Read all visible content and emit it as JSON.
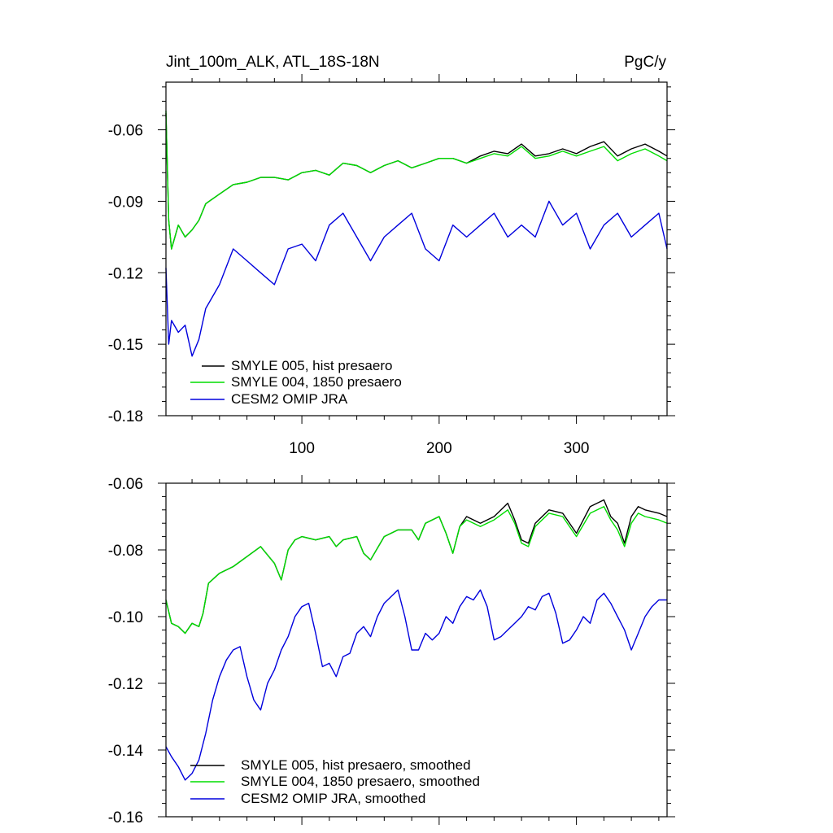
{
  "chart_data": [
    {
      "type": "line",
      "title": "Jint_100m_ALK, ATL_18S-18N",
      "units": "PgC/y",
      "xlabel": "",
      "ylabel": "",
      "xlim": [
        1,
        366
      ],
      "ylim": [
        -0.18,
        -0.04
      ],
      "x_ticks": [
        100,
        200,
        300
      ],
      "x_tick_labels": [
        "100",
        "200",
        "300"
      ],
      "y_ticks": [
        -0.18,
        -0.15,
        -0.12,
        -0.09,
        -0.06
      ],
      "y_tick_labels": [
        "-0.18",
        "-0.15",
        "-0.12",
        "-0.09",
        "-0.06"
      ],
      "grid": false,
      "legend": "bottom-left",
      "series": [
        {
          "name": "SMYLE 005, hist presaero",
          "color": "#000000",
          "x": [
            1,
            3,
            5,
            10,
            15,
            20,
            25,
            30,
            40,
            50,
            60,
            70,
            80,
            90,
            100,
            110,
            120,
            130,
            140,
            150,
            160,
            170,
            180,
            190,
            200,
            210,
            220,
            230,
            240,
            250,
            260,
            270,
            280,
            290,
            300,
            310,
            320,
            330,
            340,
            350,
            360,
            366
          ],
          "y": [
            -0.053,
            -0.098,
            -0.11,
            -0.1,
            -0.105,
            -0.102,
            -0.098,
            -0.091,
            -0.087,
            -0.083,
            -0.082,
            -0.08,
            -0.08,
            -0.081,
            -0.078,
            -0.077,
            -0.079,
            -0.074,
            -0.075,
            -0.078,
            -0.075,
            -0.073,
            -0.076,
            -0.074,
            -0.072,
            -0.072,
            -0.074,
            -0.071,
            -0.069,
            -0.07,
            -0.066,
            -0.071,
            -0.07,
            -0.068,
            -0.07,
            -0.067,
            -0.065,
            -0.071,
            -0.068,
            -0.066,
            -0.069,
            -0.071
          ]
        },
        {
          "name": "SMYLE 004, 1850 presaero",
          "color": "#00dd00",
          "x": [
            1,
            3,
            5,
            10,
            15,
            20,
            25,
            30,
            40,
            50,
            60,
            70,
            80,
            90,
            100,
            110,
            120,
            130,
            140,
            150,
            160,
            170,
            180,
            190,
            200,
            210,
            220,
            230,
            240,
            250,
            260,
            270,
            280,
            290,
            300,
            310,
            320,
            330,
            340,
            350,
            360,
            366
          ],
          "y": [
            -0.052,
            -0.098,
            -0.11,
            -0.1,
            -0.105,
            -0.102,
            -0.098,
            -0.091,
            -0.087,
            -0.083,
            -0.082,
            -0.08,
            -0.08,
            -0.081,
            -0.078,
            -0.077,
            -0.079,
            -0.074,
            -0.075,
            -0.078,
            -0.075,
            -0.073,
            -0.076,
            -0.074,
            -0.072,
            -0.072,
            -0.074,
            -0.072,
            -0.07,
            -0.071,
            -0.067,
            -0.072,
            -0.071,
            -0.069,
            -0.071,
            -0.069,
            -0.067,
            -0.073,
            -0.07,
            -0.068,
            -0.071,
            -0.073
          ]
        },
        {
          "name": "CESM2 OMIP JRA",
          "color": "#0000dd",
          "x": [
            1,
            3,
            5,
            10,
            15,
            20,
            25,
            30,
            40,
            50,
            60,
            70,
            80,
            90,
            100,
            110,
            120,
            130,
            140,
            150,
            160,
            170,
            180,
            190,
            200,
            210,
            220,
            230,
            240,
            250,
            260,
            270,
            280,
            290,
            300,
            310,
            320,
            330,
            340,
            350,
            360,
            366
          ],
          "y": [
            -0.118,
            -0.15,
            -0.14,
            -0.145,
            -0.142,
            -0.155,
            -0.148,
            -0.135,
            -0.125,
            -0.11,
            -0.115,
            -0.12,
            -0.125,
            -0.11,
            -0.108,
            -0.115,
            -0.1,
            -0.095,
            -0.105,
            -0.115,
            -0.105,
            -0.1,
            -0.095,
            -0.11,
            -0.115,
            -0.1,
            -0.105,
            -0.1,
            -0.095,
            -0.105,
            -0.1,
            -0.105,
            -0.09,
            -0.1,
            -0.095,
            -0.11,
            -0.1,
            -0.095,
            -0.105,
            -0.1,
            -0.095,
            -0.11
          ]
        }
      ]
    },
    {
      "type": "line",
      "title": "",
      "xlabel": "",
      "ylabel": "",
      "xlim": [
        1,
        366
      ],
      "ylim": [
        -0.16,
        -0.06
      ],
      "x_ticks": [
        100,
        200,
        300
      ],
      "y_ticks": [
        -0.16,
        -0.14,
        -0.12,
        -0.1,
        -0.08,
        -0.06
      ],
      "y_tick_labels": [
        "-0.16",
        "-0.14",
        "-0.12",
        "-0.10",
        "-0.08",
        "-0.06"
      ],
      "grid": false,
      "legend": "bottom-left",
      "series": [
        {
          "name": "SMYLE 005, hist presaero, smoothed",
          "color": "#000000",
          "x": [
            1,
            5,
            10,
            15,
            20,
            25,
            28,
            32,
            40,
            50,
            60,
            70,
            80,
            85,
            90,
            95,
            100,
            110,
            120,
            125,
            130,
            140,
            145,
            150,
            160,
            170,
            180,
            185,
            190,
            200,
            205,
            210,
            215,
            220,
            230,
            240,
            250,
            255,
            260,
            265,
            270,
            280,
            290,
            300,
            310,
            320,
            325,
            330,
            335,
            340,
            345,
            350,
            360,
            366
          ],
          "y": [
            -0.095,
            -0.102,
            -0.103,
            -0.105,
            -0.102,
            -0.103,
            -0.099,
            -0.09,
            -0.087,
            -0.085,
            -0.082,
            -0.079,
            -0.084,
            -0.089,
            -0.08,
            -0.077,
            -0.076,
            -0.077,
            -0.076,
            -0.079,
            -0.077,
            -0.076,
            -0.081,
            -0.083,
            -0.076,
            -0.074,
            -0.074,
            -0.077,
            -0.072,
            -0.07,
            -0.075,
            -0.081,
            -0.073,
            -0.07,
            -0.072,
            -0.07,
            -0.066,
            -0.071,
            -0.077,
            -0.078,
            -0.072,
            -0.068,
            -0.069,
            -0.075,
            -0.067,
            -0.065,
            -0.07,
            -0.072,
            -0.078,
            -0.07,
            -0.067,
            -0.068,
            -0.069,
            -0.07
          ]
        },
        {
          "name": "SMYLE 004, 1850 presaero, smoothed",
          "color": "#00dd00",
          "x": [
            1,
            5,
            10,
            15,
            20,
            25,
            28,
            32,
            40,
            50,
            60,
            70,
            80,
            85,
            90,
            95,
            100,
            110,
            120,
            125,
            130,
            140,
            145,
            150,
            160,
            170,
            180,
            185,
            190,
            200,
            205,
            210,
            215,
            220,
            230,
            240,
            250,
            255,
            260,
            265,
            270,
            280,
            290,
            300,
            310,
            320,
            325,
            330,
            335,
            340,
            345,
            350,
            360,
            366
          ],
          "y": [
            -0.095,
            -0.102,
            -0.103,
            -0.105,
            -0.102,
            -0.103,
            -0.099,
            -0.09,
            -0.087,
            -0.085,
            -0.082,
            -0.079,
            -0.084,
            -0.089,
            -0.08,
            -0.077,
            -0.076,
            -0.077,
            -0.076,
            -0.079,
            -0.077,
            -0.076,
            -0.081,
            -0.083,
            -0.076,
            -0.074,
            -0.074,
            -0.077,
            -0.072,
            -0.07,
            -0.075,
            -0.081,
            -0.073,
            -0.071,
            -0.073,
            -0.071,
            -0.068,
            -0.072,
            -0.078,
            -0.079,
            -0.073,
            -0.069,
            -0.07,
            -0.076,
            -0.069,
            -0.067,
            -0.071,
            -0.074,
            -0.079,
            -0.072,
            -0.069,
            -0.07,
            -0.071,
            -0.072
          ]
        },
        {
          "name": "CESM2 OMIP JRA, smoothed",
          "color": "#0000dd",
          "x": [
            1,
            5,
            10,
            15,
            20,
            25,
            30,
            35,
            40,
            45,
            50,
            55,
            60,
            65,
            70,
            75,
            80,
            85,
            90,
            95,
            100,
            105,
            110,
            115,
            120,
            125,
            130,
            135,
            140,
            145,
            150,
            155,
            160,
            165,
            170,
            175,
            180,
            185,
            190,
            195,
            200,
            205,
            210,
            215,
            220,
            225,
            230,
            235,
            240,
            245,
            250,
            255,
            260,
            265,
            270,
            275,
            280,
            285,
            290,
            295,
            300,
            305,
            310,
            315,
            320,
            325,
            330,
            335,
            340,
            345,
            350,
            355,
            360,
            366
          ],
          "y": [
            -0.139,
            -0.142,
            -0.145,
            -0.149,
            -0.147,
            -0.143,
            -0.135,
            -0.125,
            -0.118,
            -0.113,
            -0.11,
            -0.109,
            -0.118,
            -0.125,
            -0.128,
            -0.12,
            -0.116,
            -0.11,
            -0.106,
            -0.1,
            -0.097,
            -0.096,
            -0.105,
            -0.115,
            -0.114,
            -0.118,
            -0.112,
            -0.111,
            -0.105,
            -0.103,
            -0.106,
            -0.1,
            -0.096,
            -0.094,
            -0.092,
            -0.1,
            -0.11,
            -0.11,
            -0.105,
            -0.107,
            -0.105,
            -0.1,
            -0.102,
            -0.097,
            -0.094,
            -0.095,
            -0.092,
            -0.097,
            -0.107,
            -0.106,
            -0.104,
            -0.102,
            -0.1,
            -0.097,
            -0.098,
            -0.094,
            -0.093,
            -0.099,
            -0.108,
            -0.107,
            -0.104,
            -0.1,
            -0.102,
            -0.095,
            -0.093,
            -0.096,
            -0.1,
            -0.104,
            -0.11,
            -0.105,
            -0.1,
            -0.097,
            -0.095,
            -0.095
          ]
        }
      ]
    }
  ]
}
